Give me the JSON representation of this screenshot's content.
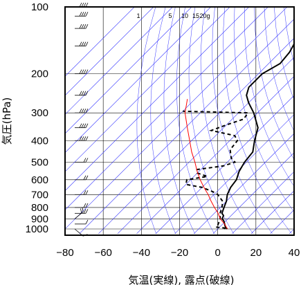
{
  "chart_data": {
    "type": "line",
    "subtype": "skew-t-diagram",
    "xlabel": "気温(実線), 露点(破線)",
    "ylabel": "気圧(hPa)",
    "x_ticks": [
      "−80",
      "−60",
      "−40",
      "−20",
      "0",
      "20",
      "40"
    ],
    "x_tick_values": [
      -80,
      -60,
      -40,
      -20,
      0,
      20,
      40
    ],
    "y_ticks": [
      "100",
      "200",
      "300",
      "400",
      "500",
      "600",
      "700",
      "800",
      "900",
      "1000"
    ],
    "y_tick_values": [
      100,
      200,
      300,
      400,
      500,
      600,
      700,
      800,
      900,
      1000
    ],
    "xlim": [
      -80,
      40
    ],
    "ylim": [
      1050,
      100
    ],
    "y_scale": "log",
    "mixing_ratio_labels": [
      "1",
      "5",
      "10",
      "15",
      "20g"
    ],
    "series": [
      {
        "style": "solid",
        "color": "#000000",
        "points": [
          [
            1000,
            5
          ],
          [
            980,
            3
          ],
          [
            950,
            1
          ],
          [
            920,
            -1
          ],
          [
            900,
            -3
          ],
          [
            870,
            -4
          ],
          [
            850,
            -6
          ],
          [
            800,
            -8
          ],
          [
            750,
            -10
          ],
          [
            700,
            -13
          ],
          [
            650,
            -15
          ],
          [
            600,
            -16
          ],
          [
            550,
            -19
          ],
          [
            500,
            -21
          ],
          [
            450,
            -22
          ],
          [
            400,
            -27
          ],
          [
            350,
            -32
          ],
          [
            300,
            -42
          ],
          [
            270,
            -50
          ],
          [
            250,
            -55
          ],
          [
            230,
            -58
          ],
          [
            200,
            -58
          ],
          [
            180,
            -54
          ],
          [
            160,
            -55
          ],
          [
            140,
            -58
          ],
          [
            120,
            -60
          ],
          [
            110,
            -63
          ],
          [
            100,
            -63
          ]
        ]
      },
      {
        "style": "dashed",
        "color": "#000000",
        "points": [
          [
            1000,
            4
          ],
          [
            990,
            3
          ],
          [
            980,
            -2
          ],
          [
            960,
            -2
          ],
          [
            930,
            -3
          ],
          [
            900,
            -4
          ],
          [
            850,
            -7
          ],
          [
            800,
            -9
          ],
          [
            750,
            -12
          ],
          [
            700,
            -18
          ],
          [
            680,
            -22
          ],
          [
            650,
            -30
          ],
          [
            630,
            -40
          ],
          [
            600,
            -42
          ],
          [
            580,
            -33
          ],
          [
            560,
            -40
          ],
          [
            540,
            -42
          ],
          [
            520,
            -30
          ],
          [
            500,
            -26
          ],
          [
            480,
            -30
          ],
          [
            440,
            -35
          ],
          [
            400,
            -36
          ],
          [
            380,
            -40
          ],
          [
            360,
            -55
          ],
          [
            340,
            -50
          ],
          [
            320,
            -44
          ],
          [
            300,
            -45
          ],
          [
            295,
            -80
          ]
        ]
      },
      {
        "style": "solid",
        "color": "#ff0000",
        "points": [
          [
            1000,
            5
          ],
          [
            950,
            1
          ],
          [
            900,
            -4
          ],
          [
            850,
            -8
          ],
          [
            800,
            -13
          ],
          [
            750,
            -18
          ],
          [
            700,
            -23
          ],
          [
            650,
            -29
          ],
          [
            600,
            -35
          ],
          [
            550,
            -41
          ],
          [
            500,
            -47
          ],
          [
            450,
            -54
          ],
          [
            400,
            -61
          ],
          [
            350,
            -69
          ],
          [
            300,
            -78
          ],
          [
            260,
            -84
          ]
        ]
      }
    ],
    "wind_barbs": [
      {
        "p": 1000,
        "direction": "southwest",
        "speed": "weak"
      },
      {
        "p": 950,
        "direction": "west",
        "speed": "weak"
      },
      {
        "p": 900,
        "direction": "northwest",
        "speed": "moderate"
      },
      {
        "p": 850,
        "direction": "west",
        "speed": "moderate"
      },
      {
        "p": 800,
        "direction": "west",
        "speed": "moderate"
      },
      {
        "p": 700,
        "direction": "west",
        "speed": "moderate"
      },
      {
        "p": 600,
        "direction": "west",
        "speed": "moderate"
      },
      {
        "p": 500,
        "direction": "west",
        "speed": "moderate"
      },
      {
        "p": 400,
        "direction": "west",
        "speed": "strong"
      },
      {
        "p": 350,
        "direction": "west",
        "speed": "strong"
      },
      {
        "p": 300,
        "direction": "west",
        "speed": "strong"
      },
      {
        "p": 250,
        "direction": "west",
        "speed": "strong"
      },
      {
        "p": 200,
        "direction": "west",
        "speed": "strong"
      },
      {
        "p": 150,
        "direction": "west",
        "speed": "strong"
      },
      {
        "p": 125,
        "direction": "west",
        "speed": "strong"
      },
      {
        "p": 110,
        "direction": "west",
        "speed": "strong"
      },
      {
        "p": 100,
        "direction": "west",
        "speed": "strong"
      }
    ],
    "grid": true,
    "colors": {
      "isotherm": "#3333ff",
      "gridline": "#000000",
      "temperature": "#000000",
      "dewpoint": "#000000",
      "parcel": "#ff0000"
    }
  }
}
